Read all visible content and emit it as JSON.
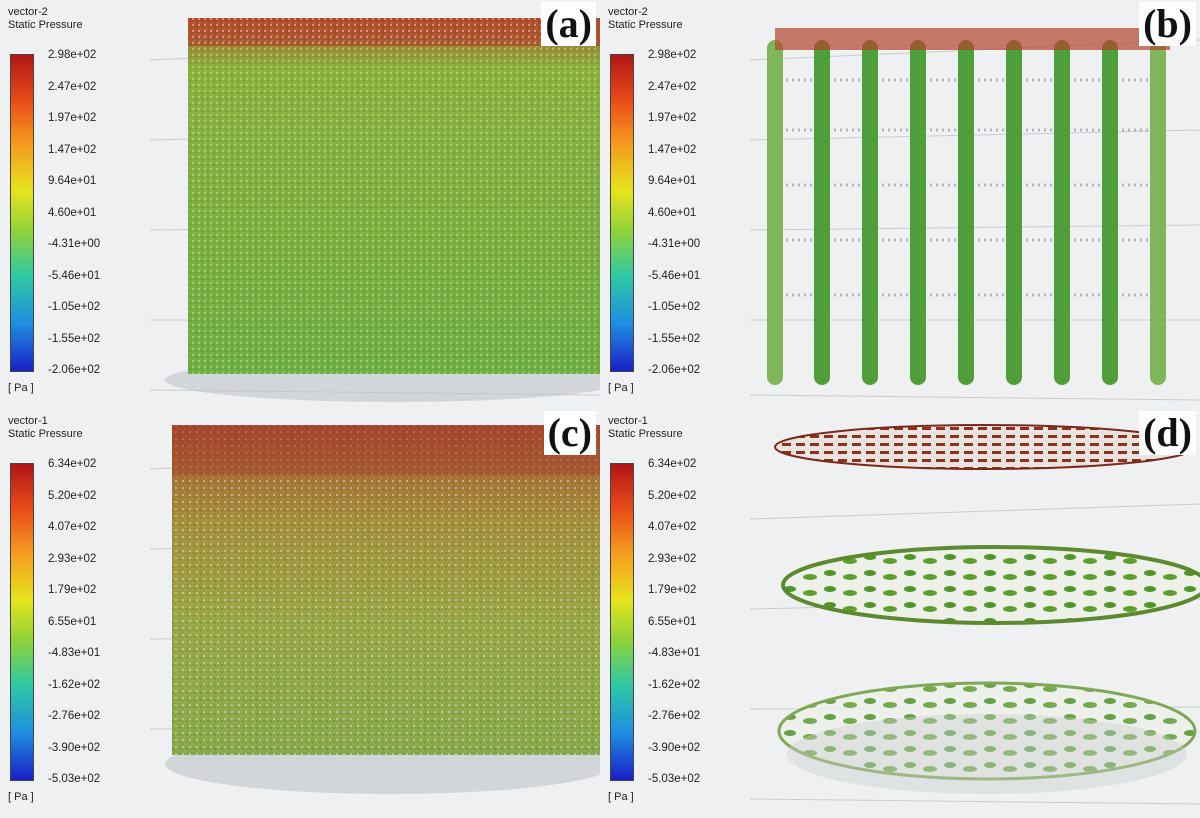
{
  "panels": [
    {
      "label": "(a)",
      "legend": {
        "title": "vector-2",
        "quantity": "Static Pressure",
        "unit": "[ Pa ]",
        "ticks": [
          "2.98e+02",
          "2.47e+02",
          "1.97e+02",
          "1.47e+02",
          "9.64e+01",
          "4.60e+01",
          "-4.31e+00",
          "-5.46e+01",
          "-1.05e+02",
          "-1.55e+02",
          "-2.06e+02"
        ]
      },
      "scene": "cylinder"
    },
    {
      "label": "(b)",
      "legend": {
        "title": "vector-2",
        "quantity": "Static Pressure",
        "unit": "[ Pa ]",
        "ticks": [
          "2.98e+02",
          "2.47e+02",
          "1.97e+02",
          "1.47e+02",
          "9.64e+01",
          "4.60e+01",
          "-4.31e+00",
          "-5.46e+01",
          "-1.05e+02",
          "-1.55e+02",
          "-2.06e+02"
        ]
      },
      "scene": "columns"
    },
    {
      "label": "(c)",
      "legend": {
        "title": "vector-1",
        "quantity": "Static Pressure",
        "unit": "[ Pa ]",
        "ticks": [
          "6.34e+02",
          "5.20e+02",
          "4.07e+02",
          "2.93e+02",
          "1.79e+02",
          "6.55e+01",
          "-4.83e+01",
          "-1.62e+02",
          "-2.76e+02",
          "-3.90e+02",
          "-5.03e+02"
        ]
      },
      "scene": "cylinder-hot"
    },
    {
      "label": "(d)",
      "legend": {
        "title": "vector-1",
        "quantity": "Static Pressure",
        "unit": "[ Pa ]",
        "ticks": [
          "6.34e+02",
          "5.20e+02",
          "4.07e+02",
          "2.93e+02",
          "1.79e+02",
          "6.55e+01",
          "-4.83e+01",
          "-1.62e+02",
          "-2.76e+02",
          "-3.90e+02",
          "-5.03e+02"
        ]
      },
      "scene": "discs"
    }
  ],
  "colors": {
    "high": "#b01616",
    "mid_high": "#e84a18",
    "mid": "#8ed23a",
    "low": "#1a1ec8",
    "flow_green": "#5aa832"
  }
}
